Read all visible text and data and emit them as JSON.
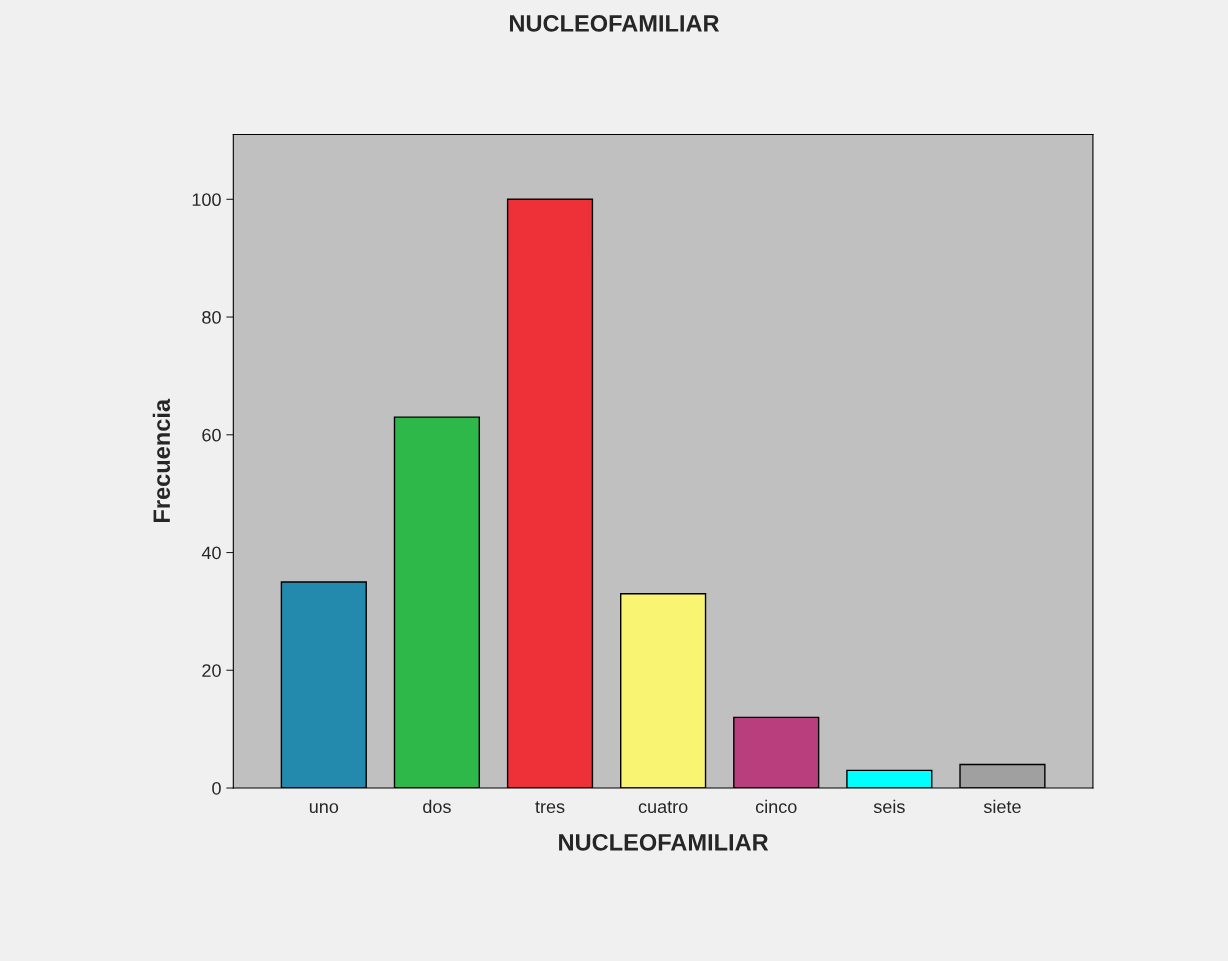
{
  "chart_data": {
    "type": "bar",
    "title": "NUCLEOFAMILIAR",
    "xlabel": "NUCLEOFAMILIAR",
    "ylabel": "Frecuencia",
    "categories": [
      "uno",
      "dos",
      "tres",
      "cuatro",
      "cinco",
      "seis",
      "siete"
    ],
    "values": [
      35,
      63,
      100,
      33,
      12,
      3,
      4
    ],
    "colors": [
      "#238aad",
      "#2fb84a",
      "#ee3038",
      "#f9f572",
      "#b83e7e",
      "#00ffff",
      "#a0a0a0"
    ],
    "ylim": [
      0,
      111
    ],
    "yticks": [
      0,
      20,
      40,
      60,
      80,
      100
    ],
    "grid": false,
    "legend": false
  }
}
